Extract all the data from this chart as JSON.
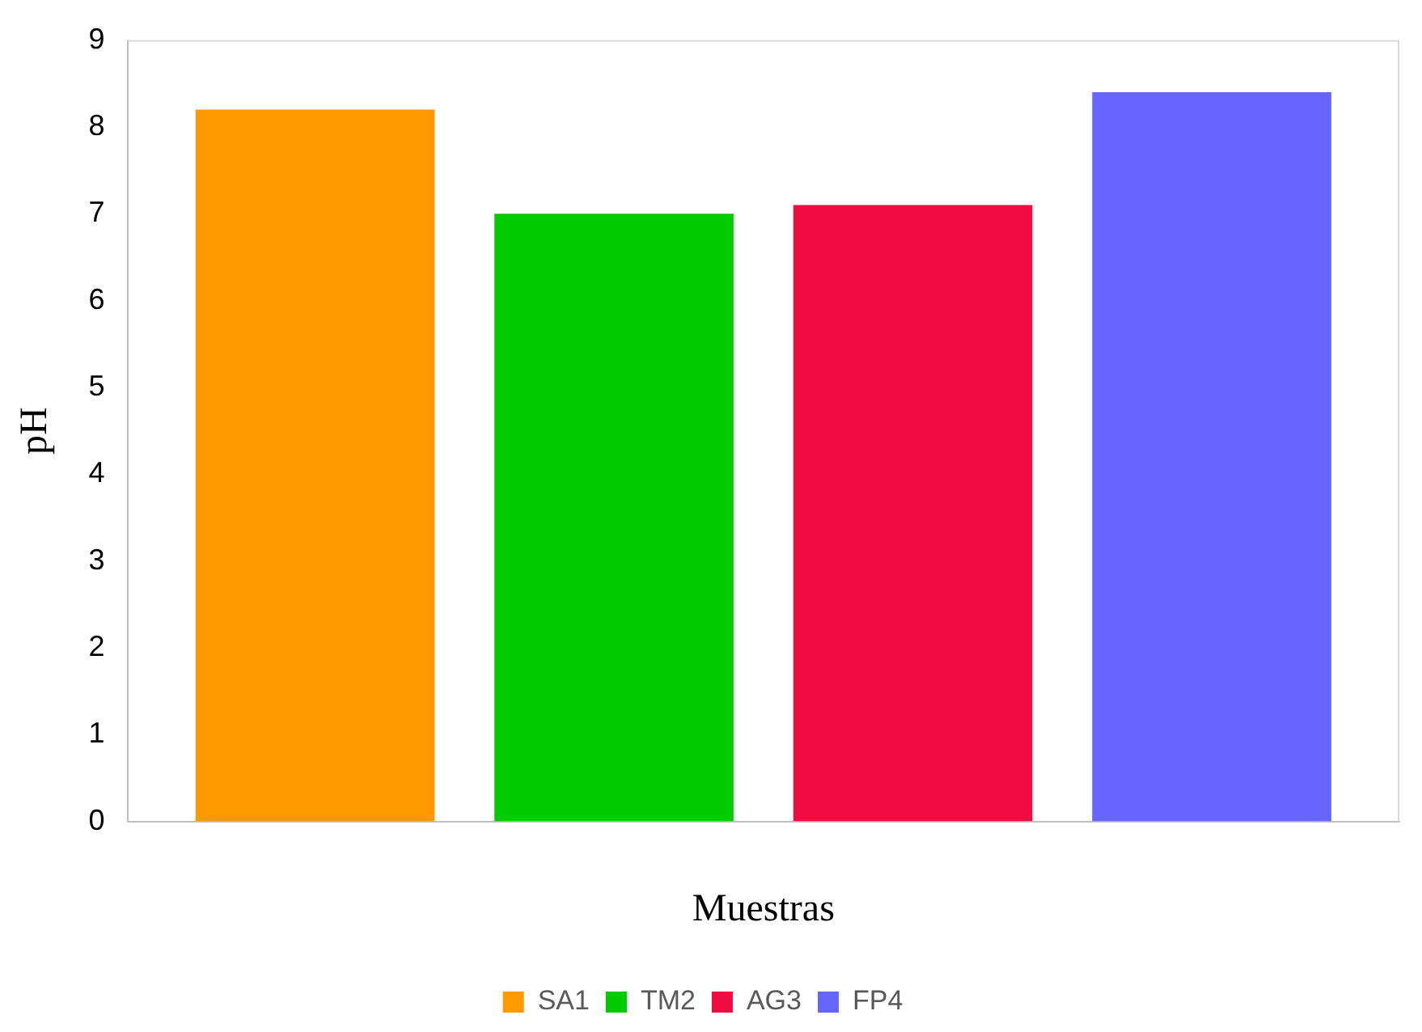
{
  "chart_data": {
    "type": "bar",
    "xlabel": "Muestras",
    "ylabel": "pH",
    "categories": [
      null
    ],
    "series": [
      {
        "name": "SA1",
        "color": "#ff9900",
        "values": [
          8.2
        ]
      },
      {
        "name": "TM2",
        "color": "#00cc00",
        "values": [
          7.0
        ]
      },
      {
        "name": "AG3",
        "color": "#f00c40",
        "values": [
          7.1
        ]
      },
      {
        "name": "FP4",
        "color": "#6666ff",
        "values": [
          8.4
        ]
      }
    ],
    "ylim": [
      0,
      9
    ],
    "yticks": [
      0,
      1,
      2,
      3,
      4,
      5,
      6,
      7,
      8,
      9
    ],
    "grid": false,
    "legend": "bottom"
  }
}
